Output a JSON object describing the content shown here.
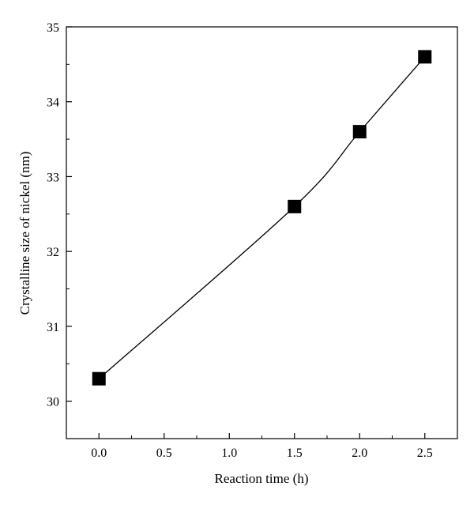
{
  "chart_data": {
    "type": "line",
    "xlabel": "Reaction time (h)",
    "ylabel": "Crystalline size of nickel (nm)",
    "xlim": [
      -0.25,
      2.75
    ],
    "ylim": [
      29.5,
      35
    ],
    "x_ticks": [
      0.0,
      0.5,
      1.0,
      1.5,
      2.0,
      2.5
    ],
    "x_tick_labels": [
      "0.0",
      "0.5",
      "1.0",
      "1.5",
      "2.0",
      "2.5"
    ],
    "y_ticks": [
      30,
      31,
      32,
      33,
      34,
      35
    ],
    "y_tick_labels": [
      "30",
      "31",
      "32",
      "33",
      "34",
      "35"
    ],
    "grid": false,
    "marker": "square",
    "series": [
      {
        "x": [
          0.0,
          1.5,
          2.0,
          2.5
        ],
        "y": [
          30.3,
          32.6,
          33.6,
          34.6
        ]
      }
    ]
  }
}
